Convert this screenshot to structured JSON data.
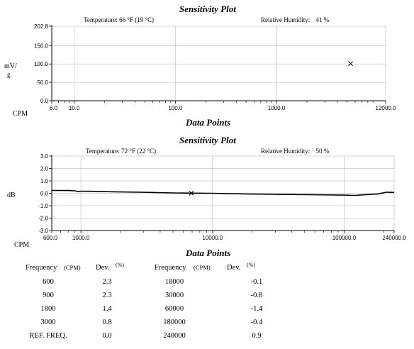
{
  "charts": [
    {
      "title": "Sensitivity Plot",
      "temperature_label": "Temperature:",
      "temperature_value": "66 °F (19 °C)",
      "humidity_label": "Relative Humidity:",
      "humidity_value": "41 %",
      "ylabel_top": "mV/",
      "ylabel_bottom": "g",
      "xlabel": "CPM",
      "footer": "Data Points"
    },
    {
      "title": "Sensitivity Plot",
      "temperature_label": "Temperature:",
      "temperature_value": "72 °F (22 °C)",
      "humidity_label": "Relative Humidity:",
      "humidity_value": "50 %",
      "ylabel": "dB",
      "xlabel": "CPM",
      "footer": "Data Points"
    }
  ],
  "chart_data": [
    {
      "type": "scatter",
      "title": "Sensitivity Plot",
      "xlabel": "CPM",
      "ylabel": "mV/g",
      "x_scale": "log",
      "xlim": [
        6.0,
        12000.0
      ],
      "ylim": [
        0.0,
        202.8
      ],
      "x_ticks": [
        {
          "value": 6.0,
          "label": "6.0"
        },
        {
          "value": 10.0,
          "label": "10.0"
        },
        {
          "value": 100.0,
          "label": "100.0"
        },
        {
          "value": 1000.0,
          "label": "1000.0"
        },
        {
          "value": 12000.0,
          "label": "12000.0"
        }
      ],
      "y_ticks": [
        {
          "value": 202.8,
          "label": "202.8"
        },
        {
          "value": 150.0,
          "label": "150.0"
        },
        {
          "value": 100.0,
          "label": "100.0"
        },
        {
          "value": 50.0,
          "label": "50.0"
        },
        {
          "value": 0.0,
          "label": "0.0"
        }
      ],
      "grid": true,
      "points": [
        {
          "x": 5400,
          "y": 101
        }
      ],
      "marker": "x"
    },
    {
      "type": "line",
      "title": "Sensitivity Plot",
      "xlabel": "CPM",
      "ylabel": "dB",
      "x_scale": "log",
      "xlim": [
        600.0,
        240000.0
      ],
      "ylim": [
        -3.0,
        3.0
      ],
      "x_ticks": [
        {
          "value": 600.0,
          "label": "600.0"
        },
        {
          "value": 1000.0,
          "label": "1000.0"
        },
        {
          "value": 10000.0,
          "label": "10000.0"
        },
        {
          "value": 100000.0,
          "label": "100000.0"
        },
        {
          "value": 240000.0,
          "label": "240000.0"
        }
      ],
      "y_ticks": [
        {
          "value": 3.0,
          "label": "3.0"
        },
        {
          "value": 2.0,
          "label": "2.0"
        },
        {
          "value": 1.0,
          "label": "1.0"
        },
        {
          "value": 0.0,
          "label": "0.0"
        },
        {
          "value": -1.0,
          "label": "-1.0"
        },
        {
          "value": -2.0,
          "label": "-2.0"
        },
        {
          "value": -3.0,
          "label": "-3.0"
        }
      ],
      "grid": true,
      "series": [
        {
          "x": [
            600,
            700,
            800,
            900,
            950,
            1000,
            1200,
            1800,
            3000,
            5000,
            7000,
            10000,
            18000,
            30000,
            60000,
            100000,
            120000,
            150000,
            180000,
            210000,
            240000
          ],
          "y": [
            0.23,
            0.23,
            0.22,
            0.2,
            0.15,
            0.17,
            0.16,
            0.12,
            0.08,
            0.03,
            0.01,
            0.0,
            -0.05,
            -0.08,
            -0.12,
            -0.15,
            -0.17,
            -0.1,
            -0.05,
            0.09,
            0.07
          ]
        }
      ],
      "marker_point": {
        "x": 6900,
        "y": 0.01
      }
    }
  ],
  "table": {
    "title": "Data Points",
    "headers": [
      "Frequency",
      "(CPM)",
      "Dev.",
      "(%)",
      "Frequency",
      "(CPM)",
      "Dev.",
      "(%)"
    ],
    "rows": [
      [
        "600",
        "2.3",
        "18000",
        "-0.1"
      ],
      [
        "900",
        "2.3",
        "30000",
        "-0.8"
      ],
      [
        "1800",
        "1.4",
        "60000",
        "-1.4"
      ],
      [
        "3000",
        "0.8",
        "180000",
        "-0.4"
      ],
      [
        "REF. FREQ.",
        "0.0",
        "240000",
        "0.9"
      ]
    ]
  }
}
